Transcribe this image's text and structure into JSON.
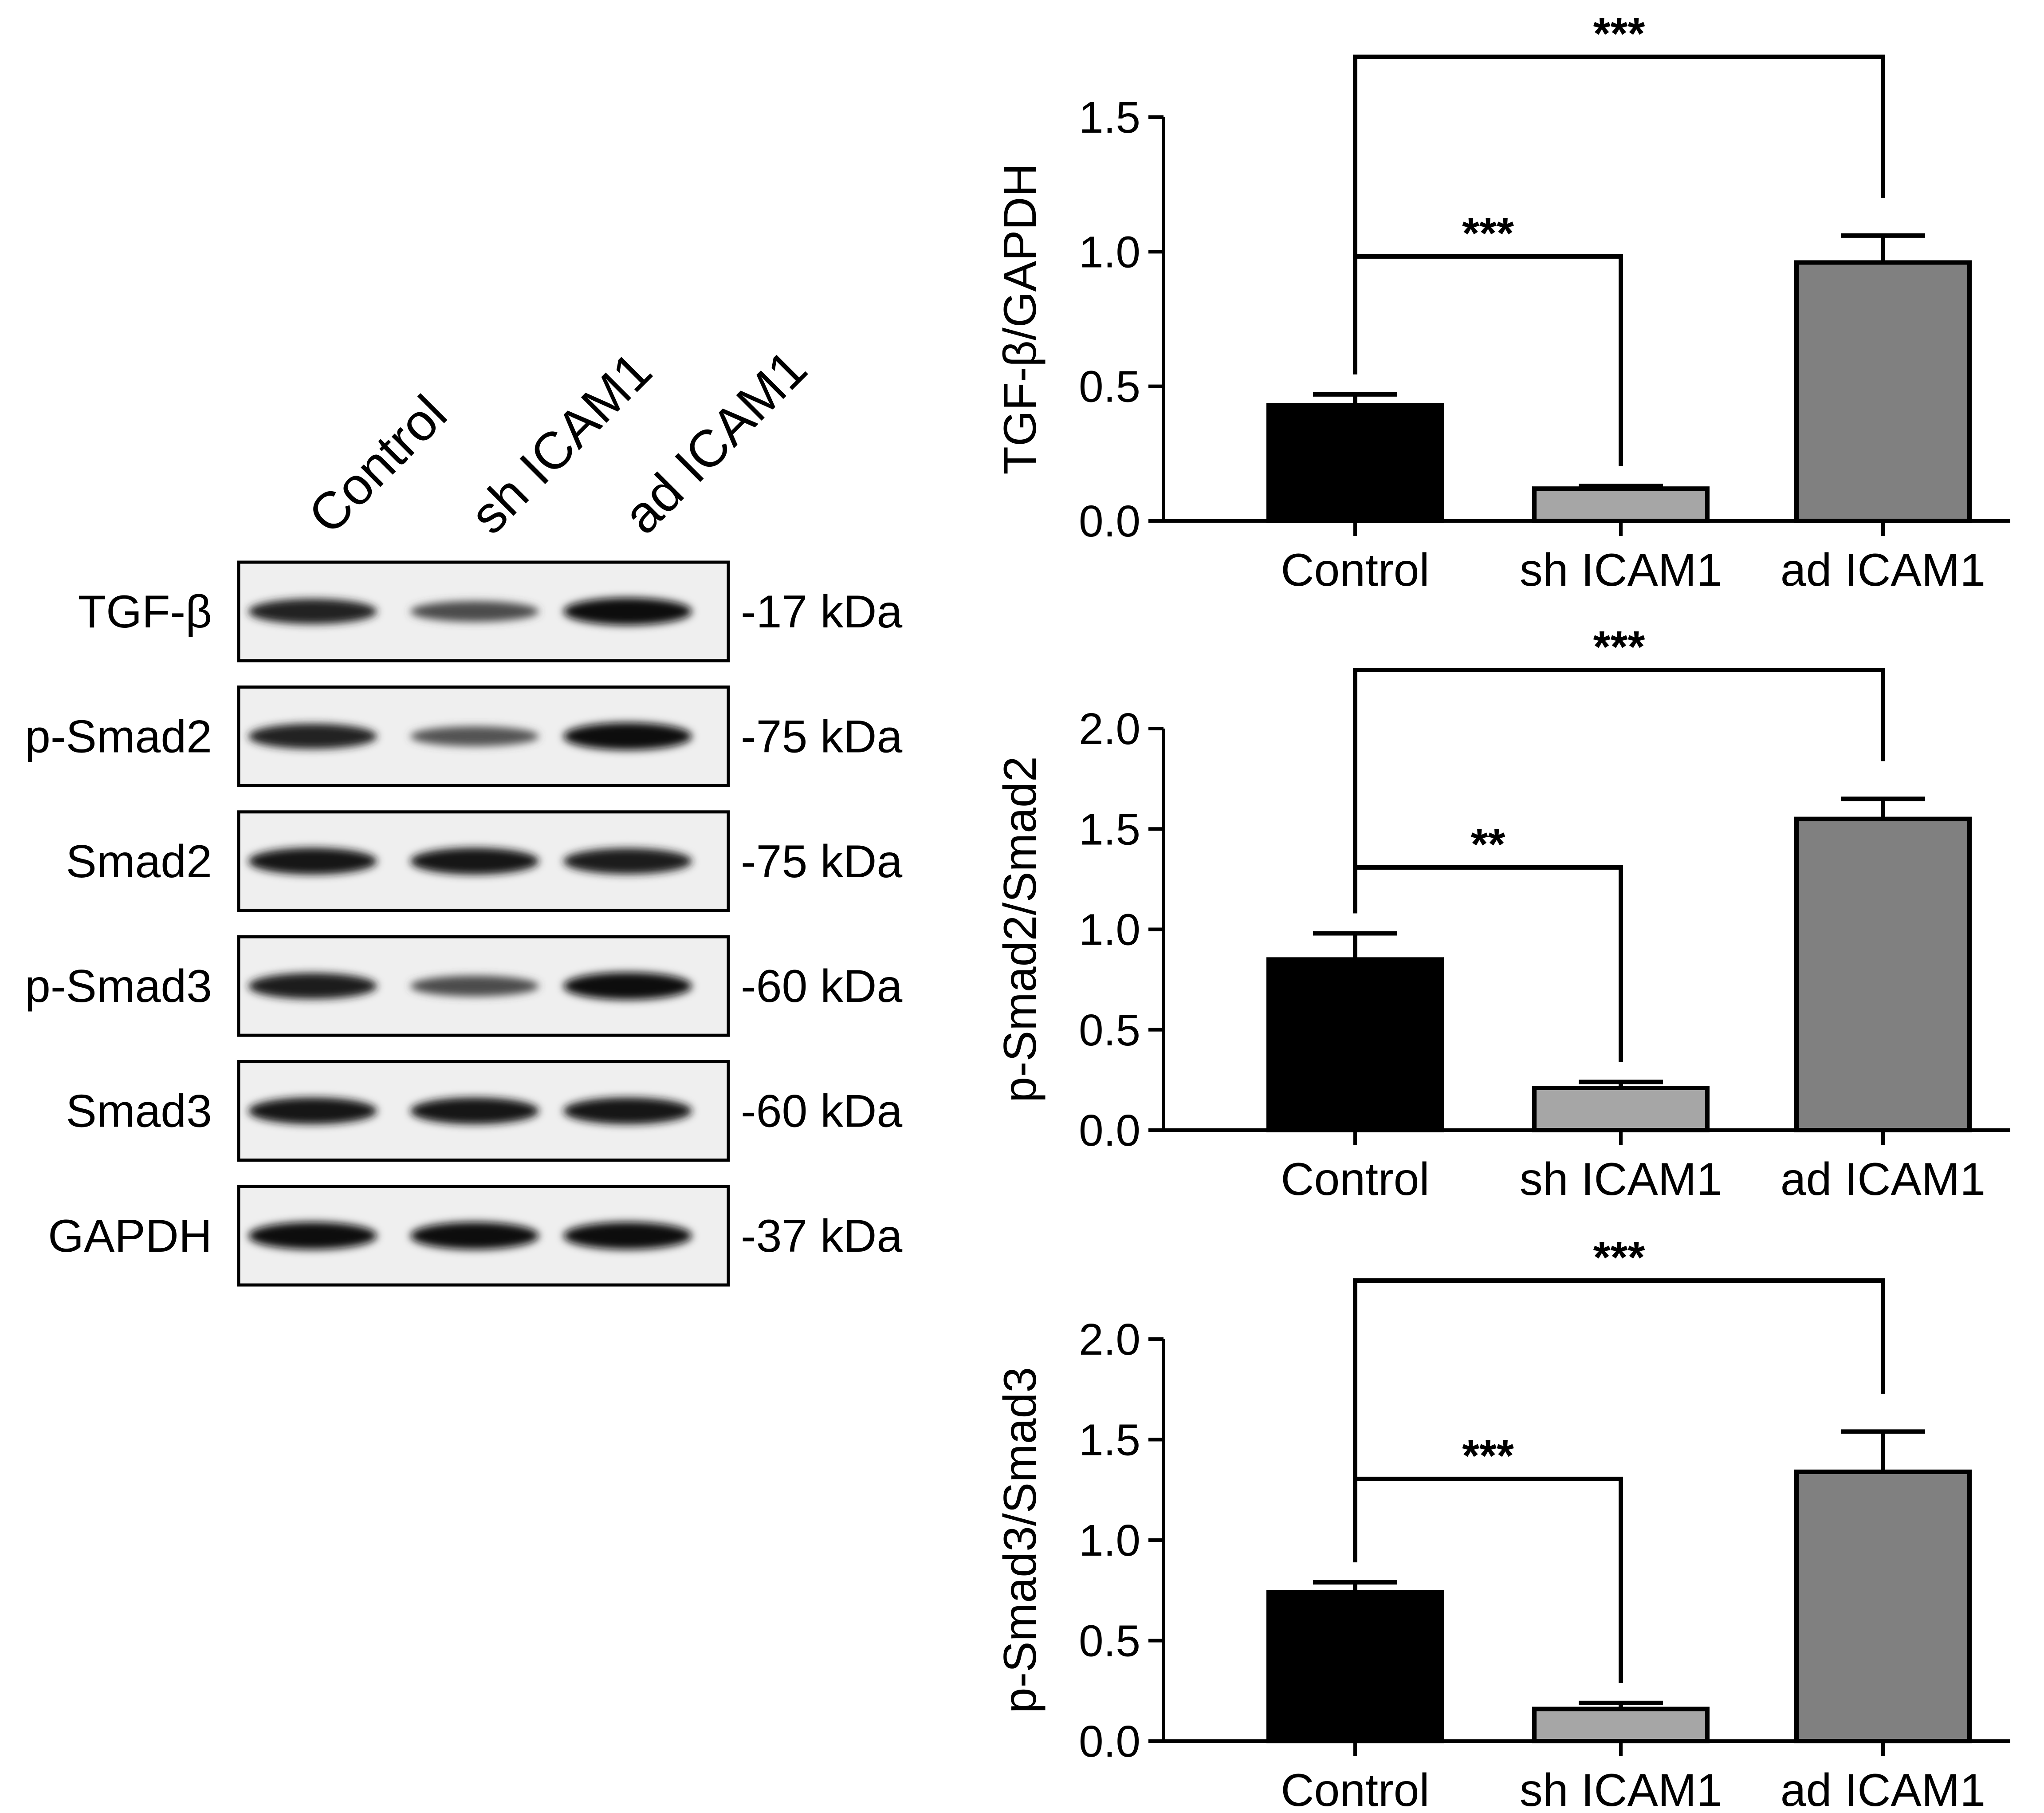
{
  "blot": {
    "lanes": [
      "Control",
      "sh ICAM1",
      "ad ICAM1"
    ],
    "rows": [
      {
        "protein": "TGF-β",
        "size": "-17 kDa",
        "intensity": [
          0.85,
          0.55,
          1.0
        ]
      },
      {
        "protein": "p-Smad2",
        "size": "-75 kDa",
        "intensity": [
          0.85,
          0.5,
          1.0
        ]
      },
      {
        "protein": "Smad2",
        "size": "-75 kDa",
        "intensity": [
          0.95,
          0.95,
          0.9
        ]
      },
      {
        "protein": "p-Smad3",
        "size": "-60 kDa",
        "intensity": [
          0.9,
          0.55,
          1.0
        ]
      },
      {
        "protein": "Smad3",
        "size": "-60 kDa",
        "intensity": [
          0.95,
          0.95,
          0.95
        ]
      },
      {
        "protein": "GAPDH",
        "size": "-37 kDa",
        "intensity": [
          1.0,
          1.0,
          1.0
        ]
      }
    ]
  },
  "chart_data": [
    {
      "type": "bar",
      "categories": [
        "Control",
        "sh ICAM1",
        "ad ICAM1"
      ],
      "values": [
        0.43,
        0.12,
        0.96
      ],
      "errors": [
        0.04,
        0.01,
        0.1
      ],
      "colors": [
        "#000000",
        "#a6a6a6",
        "#808080"
      ],
      "ylabel": "TGF-β/GAPDH",
      "ylim": [
        0,
        1.5
      ],
      "yticks": [
        "0.0",
        "0.5",
        "1.0",
        "1.5"
      ],
      "significance": [
        {
          "from": "Control",
          "to": "sh ICAM1",
          "label": "***"
        },
        {
          "from": "Control",
          "to": "ad ICAM1",
          "label": "***"
        }
      ]
    },
    {
      "type": "bar",
      "categories": [
        "Control",
        "sh ICAM1",
        "ad ICAM1"
      ],
      "values": [
        0.85,
        0.21,
        1.55
      ],
      "errors": [
        0.13,
        0.03,
        0.1
      ],
      "colors": [
        "#000000",
        "#a6a6a6",
        "#808080"
      ],
      "ylabel": "p-Smad2/Smad2",
      "ylim": [
        0,
        2.0
      ],
      "yticks": [
        "0.0",
        "0.5",
        "1.0",
        "1.5",
        "2.0"
      ],
      "significance": [
        {
          "from": "Control",
          "to": "sh ICAM1",
          "label": "**"
        },
        {
          "from": "Control",
          "to": "ad ICAM1",
          "label": "***"
        }
      ]
    },
    {
      "type": "bar",
      "categories": [
        "Control",
        "sh ICAM1",
        "ad ICAM1"
      ],
      "values": [
        0.74,
        0.16,
        1.34
      ],
      "errors": [
        0.05,
        0.03,
        0.2
      ],
      "colors": [
        "#000000",
        "#a6a6a6",
        "#808080"
      ],
      "ylabel": "p-Smad3/Smad3",
      "ylim": [
        0,
        2.0
      ],
      "yticks": [
        "0.0",
        "0.5",
        "1.0",
        "1.5",
        "2.0"
      ],
      "significance": [
        {
          "from": "Control",
          "to": "sh ICAM1",
          "label": "***"
        },
        {
          "from": "Control",
          "to": "ad ICAM1",
          "label": "***"
        }
      ]
    }
  ]
}
